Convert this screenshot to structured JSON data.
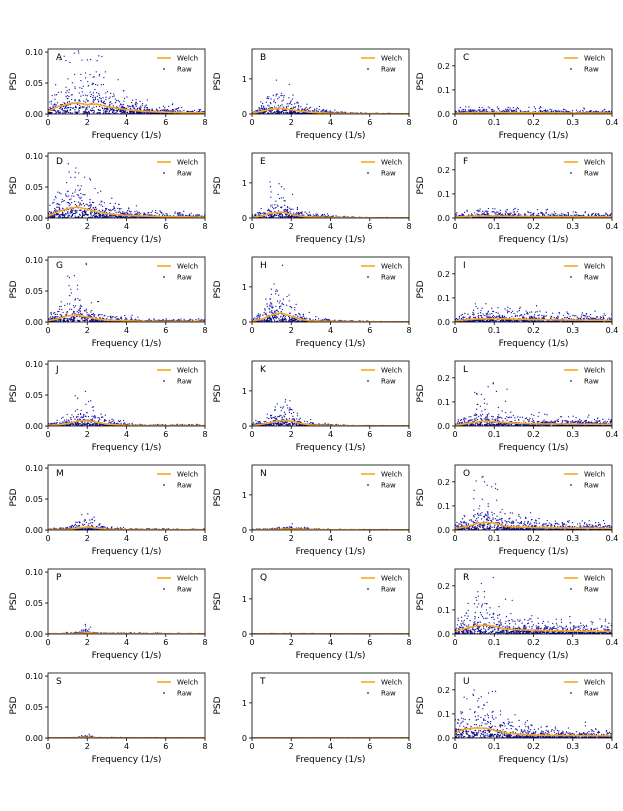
{
  "figure": {
    "legend_line_label": "Welch",
    "legend_dot_label": "Raw",
    "colors": {
      "welch": "#f5a623",
      "raw": "#1a1aa8",
      "raw_dense": "#0b0b8a"
    }
  },
  "chart_data": [
    {
      "panel": "A",
      "type": "scatter",
      "xlabel": "Frequency (1/s)",
      "ylabel": "PSD",
      "xlim": [
        0,
        8
      ],
      "ylim": [
        0,
        0.105
      ],
      "xticks": [
        0,
        2,
        4,
        6,
        8
      ],
      "yticks": [
        0,
        0.05,
        0.1
      ],
      "ytick_labels": [
        "0.00",
        "0.05",
        "0.10"
      ],
      "legend": "top-right",
      "raw_peak": 0.105,
      "welch": {
        "x": [
          0,
          0.5,
          1,
          1.5,
          2,
          2.5,
          3,
          4,
          5,
          6,
          7,
          8
        ],
        "y": [
          0.004,
          0.012,
          0.016,
          0.018,
          0.015,
          0.016,
          0.012,
          0.007,
          0.004,
          0.003,
          0.002,
          0.002
        ]
      }
    },
    {
      "panel": "B",
      "type": "scatter",
      "xlabel": "Frequency (1/s)",
      "ylabel": "PSD",
      "xlim": [
        0,
        8
      ],
      "ylim": [
        0,
        1.85
      ],
      "xticks": [
        0,
        2,
        4,
        6,
        8
      ],
      "yticks": [
        0,
        1
      ],
      "ytick_labels": [
        "0",
        "1"
      ],
      "legend": "top-right",
      "raw_peak": 1.0,
      "welch": {
        "x": [
          0,
          0.5,
          1,
          1.5,
          2,
          2.5,
          3,
          4,
          5,
          6,
          7,
          8
        ],
        "y": [
          0.02,
          0.08,
          0.14,
          0.16,
          0.12,
          0.08,
          0.05,
          0.02,
          0.01,
          0.005,
          0.003,
          0.002
        ]
      }
    },
    {
      "panel": "C",
      "type": "scatter",
      "xlabel": "Frequency (1/s)",
      "ylabel": "PSD",
      "xlim": [
        0,
        0.4
      ],
      "ylim": [
        0,
        0.27
      ],
      "xticks": [
        0,
        0.1,
        0.2,
        0.3,
        0.4
      ],
      "yticks": [
        0,
        0.1,
        0.2
      ],
      "ytick_labels": [
        "0.0",
        "0.1",
        "0.2"
      ],
      "legend": "top-right",
      "raw_peak": 0.03,
      "welch": {
        "x": [
          0,
          0.05,
          0.1,
          0.2,
          0.3,
          0.4
        ],
        "y": [
          0.003,
          0.006,
          0.006,
          0.005,
          0.004,
          0.004
        ]
      }
    },
    {
      "panel": "D",
      "type": "scatter",
      "xlabel": "Frequency (1/s)",
      "ylabel": "PSD",
      "xlim": [
        0,
        8
      ],
      "ylim": [
        0,
        0.105
      ],
      "xticks": [
        0,
        2,
        4,
        6,
        8
      ],
      "yticks": [
        0,
        0.05,
        0.1
      ],
      "ytick_labels": [
        "0.00",
        "0.05",
        "0.10"
      ],
      "legend": "top-right",
      "raw_peak": 0.093,
      "welch": {
        "x": [
          0,
          0.5,
          1,
          1.5,
          2,
          2.5,
          3,
          4,
          5,
          6,
          7,
          8
        ],
        "y": [
          0.003,
          0.01,
          0.015,
          0.018,
          0.014,
          0.01,
          0.007,
          0.004,
          0.003,
          0.002,
          0.002,
          0.001
        ]
      }
    },
    {
      "panel": "E",
      "type": "scatter",
      "xlabel": "Frequency (1/s)",
      "ylabel": "PSD",
      "xlim": [
        0,
        8
      ],
      "ylim": [
        0,
        1.85
      ],
      "xticks": [
        0,
        2,
        4,
        6,
        8
      ],
      "yticks": [
        0,
        1
      ],
      "ytick_labels": [
        "0",
        "1"
      ],
      "legend": "top-right",
      "raw_peak": 1.15,
      "welch": {
        "x": [
          0,
          0.5,
          1,
          1.5,
          2,
          2.5,
          3,
          4,
          5,
          6,
          7,
          8
        ],
        "y": [
          0.02,
          0.06,
          0.14,
          0.17,
          0.1,
          0.05,
          0.03,
          0.015,
          0.008,
          0.004,
          0.003,
          0.002
        ]
      }
    },
    {
      "panel": "F",
      "type": "scatter",
      "xlabel": "Frequency (1/s)",
      "ylabel": "PSD",
      "xlim": [
        0,
        0.4
      ],
      "ylim": [
        0,
        0.27
      ],
      "xticks": [
        0,
        0.1,
        0.2,
        0.3,
        0.4
      ],
      "yticks": [
        0,
        0.1,
        0.2
      ],
      "ytick_labels": [
        "0.0",
        "0.1",
        "0.2"
      ],
      "legend": "top-right",
      "raw_peak": 0.04,
      "welch": {
        "x": [
          0,
          0.05,
          0.1,
          0.2,
          0.3,
          0.4
        ],
        "y": [
          0.004,
          0.008,
          0.008,
          0.006,
          0.005,
          0.005
        ]
      }
    },
    {
      "panel": "G",
      "type": "scatter",
      "xlabel": "Frequency (1/s)",
      "ylabel": "PSD",
      "xlim": [
        0,
        8
      ],
      "ylim": [
        0,
        0.105
      ],
      "xticks": [
        0,
        2,
        4,
        6,
        8
      ],
      "yticks": [
        0,
        0.05,
        0.1
      ],
      "ytick_labels": [
        "0.00",
        "0.05",
        "0.10"
      ],
      "legend": "top-right",
      "raw_peak": 0.095,
      "welch": {
        "x": [
          0,
          0.5,
          1,
          1.5,
          2,
          2.5,
          3,
          4,
          5,
          6,
          7,
          8
        ],
        "y": [
          0.002,
          0.005,
          0.01,
          0.011,
          0.008,
          0.005,
          0.003,
          0.002,
          0.001,
          0.001,
          0.001,
          0.001
        ]
      }
    },
    {
      "panel": "H",
      "type": "scatter",
      "xlabel": "Frequency (1/s)",
      "ylabel": "PSD",
      "xlim": [
        0,
        8
      ],
      "ylim": [
        0,
        1.85
      ],
      "xticks": [
        0,
        2,
        4,
        6,
        8
      ],
      "yticks": [
        0,
        1
      ],
      "ytick_labels": [
        "0",
        "1"
      ],
      "legend": "top-right",
      "raw_peak": 1.65,
      "welch": {
        "x": [
          0,
          0.5,
          1,
          1.5,
          2,
          2.5,
          3,
          4,
          5,
          6,
          7,
          8
        ],
        "y": [
          0.02,
          0.08,
          0.2,
          0.26,
          0.16,
          0.07,
          0.03,
          0.015,
          0.008,
          0.005,
          0.003,
          0.002
        ]
      }
    },
    {
      "panel": "I",
      "type": "scatter",
      "xlabel": "Frequency (1/s)",
      "ylabel": "PSD",
      "xlim": [
        0,
        0.4
      ],
      "ylim": [
        0,
        0.27
      ],
      "xticks": [
        0,
        0.1,
        0.2,
        0.3,
        0.4
      ],
      "yticks": [
        0,
        0.1,
        0.2
      ],
      "ytick_labels": [
        "0.0",
        "0.1",
        "0.2"
      ],
      "legend": "top-right",
      "raw_peak": 0.08,
      "welch": {
        "x": [
          0,
          0.05,
          0.1,
          0.15,
          0.2,
          0.3,
          0.4
        ],
        "y": [
          0.005,
          0.012,
          0.014,
          0.012,
          0.01,
          0.008,
          0.007
        ]
      }
    },
    {
      "panel": "J",
      "type": "scatter",
      "xlabel": "Frequency (1/s)",
      "ylabel": "PSD",
      "xlim": [
        0,
        8
      ],
      "ylim": [
        0,
        0.105
      ],
      "xticks": [
        0,
        2,
        4,
        6,
        8
      ],
      "yticks": [
        0,
        0.05,
        0.1
      ],
      "ytick_labels": [
        "0.00",
        "0.05",
        "0.10"
      ],
      "legend": "top-right",
      "raw_peak": 0.058,
      "welch": {
        "x": [
          0,
          0.5,
          1,
          1.5,
          2,
          2.5,
          3,
          4,
          5,
          6,
          7,
          8
        ],
        "y": [
          0.001,
          0.002,
          0.004,
          0.008,
          0.009,
          0.006,
          0.003,
          0.001,
          0.0005,
          0.0005,
          0.0005,
          0.0005
        ]
      }
    },
    {
      "panel": "K",
      "type": "scatter",
      "xlabel": "Frequency (1/s)",
      "ylabel": "PSD",
      "xlim": [
        0,
        8
      ],
      "ylim": [
        0,
        1.85
      ],
      "xticks": [
        0,
        2,
        4,
        6,
        8
      ],
      "yticks": [
        0,
        1
      ],
      "ytick_labels": [
        "0",
        "1"
      ],
      "legend": "top-right",
      "raw_peak": 0.75,
      "welch": {
        "x": [
          0,
          0.5,
          1,
          1.5,
          2,
          2.5,
          3,
          4,
          5,
          6,
          7,
          8
        ],
        "y": [
          0.01,
          0.05,
          0.1,
          0.16,
          0.14,
          0.07,
          0.03,
          0.01,
          0.005,
          0.003,
          0.002,
          0.002
        ]
      }
    },
    {
      "panel": "L",
      "type": "scatter",
      "xlabel": "Frequency (1/s)",
      "ylabel": "PSD",
      "xlim": [
        0,
        0.4
      ],
      "ylim": [
        0,
        0.27
      ],
      "xticks": [
        0,
        0.1,
        0.2,
        0.3,
        0.4
      ],
      "yticks": [
        0,
        0.1,
        0.2
      ],
      "ytick_labels": [
        "0.0",
        "0.1",
        "0.2"
      ],
      "legend": "top-right",
      "raw_peak": 0.18,
      "welch": {
        "x": [
          0,
          0.03,
          0.06,
          0.08,
          0.1,
          0.15,
          0.2,
          0.3,
          0.4
        ],
        "y": [
          0.003,
          0.01,
          0.018,
          0.02,
          0.018,
          0.012,
          0.009,
          0.008,
          0.007
        ]
      }
    },
    {
      "panel": "M",
      "type": "scatter",
      "xlabel": "Frequency (1/s)",
      "ylabel": "PSD",
      "xlim": [
        0,
        8
      ],
      "ylim": [
        0,
        0.105
      ],
      "xticks": [
        0,
        2,
        4,
        6,
        8
      ],
      "yticks": [
        0,
        0.05,
        0.1
      ],
      "ytick_labels": [
        "0.00",
        "0.05",
        "0.10"
      ],
      "legend": "top-right",
      "raw_peak": 0.035,
      "welch": {
        "x": [
          0,
          1,
          1.5,
          2,
          2.5,
          3,
          4,
          8
        ],
        "y": [
          0.0005,
          0.001,
          0.003,
          0.005,
          0.003,
          0.001,
          0.0005,
          0.0003
        ]
      }
    },
    {
      "panel": "N",
      "type": "scatter",
      "xlabel": "Frequency (1/s)",
      "ylabel": "PSD",
      "xlim": [
        0,
        8
      ],
      "ylim": [
        0,
        1.85
      ],
      "xticks": [
        0,
        2,
        4,
        6,
        8
      ],
      "yticks": [
        0,
        1
      ],
      "ytick_labels": [
        "0",
        "1"
      ],
      "legend": "top-right",
      "raw_peak": 0.2,
      "welch": {
        "x": [
          0,
          1,
          1.5,
          2,
          2.5,
          3,
          4,
          8
        ],
        "y": [
          0.005,
          0.01,
          0.02,
          0.03,
          0.02,
          0.01,
          0.005,
          0.002
        ]
      }
    },
    {
      "panel": "O",
      "type": "scatter",
      "xlabel": "Frequency (1/s)",
      "ylabel": "PSD",
      "xlim": [
        0,
        0.4
      ],
      "ylim": [
        0,
        0.27
      ],
      "xticks": [
        0,
        0.1,
        0.2,
        0.3,
        0.4
      ],
      "yticks": [
        0,
        0.1,
        0.2
      ],
      "ytick_labels": [
        "0.0",
        "0.1",
        "0.2"
      ],
      "legend": "top-right",
      "raw_peak": 0.26,
      "welch": {
        "x": [
          0,
          0.03,
          0.06,
          0.08,
          0.1,
          0.13,
          0.2,
          0.3,
          0.4
        ],
        "y": [
          0.005,
          0.015,
          0.028,
          0.032,
          0.028,
          0.015,
          0.01,
          0.008,
          0.007
        ]
      }
    },
    {
      "panel": "P",
      "type": "scatter",
      "xlabel": "Frequency (1/s)",
      "ylabel": "PSD",
      "xlim": [
        0,
        8
      ],
      "ylim": [
        0,
        0.105
      ],
      "xticks": [
        0,
        2,
        4,
        6,
        8
      ],
      "yticks": [
        0,
        0.05,
        0.1
      ],
      "ytick_labels": [
        "0.00",
        "0.05",
        "0.10"
      ],
      "legend": "top-right",
      "raw_peak": 0.016,
      "welch": {
        "x": [
          0,
          1.5,
          1.9,
          2.1,
          2.5,
          8
        ],
        "y": [
          0.0002,
          0.0005,
          0.002,
          0.002,
          0.0005,
          0.0002
        ]
      }
    },
    {
      "panel": "Q",
      "type": "scatter",
      "xlabel": "Frequency (1/s)",
      "ylabel": "PSD",
      "xlim": [
        0,
        8
      ],
      "ylim": [
        0,
        1.85
      ],
      "xticks": [
        0,
        2,
        4,
        6,
        8
      ],
      "yticks": [
        0,
        1
      ],
      "ytick_labels": [
        "0",
        "1"
      ],
      "legend": "top-right",
      "raw_peak": 0.02,
      "welch": {
        "x": [
          0,
          2,
          4,
          8
        ],
        "y": [
          0.001,
          0.002,
          0.001,
          0.001
        ]
      }
    },
    {
      "panel": "R",
      "type": "scatter",
      "xlabel": "Frequency (1/s)",
      "ylabel": "PSD",
      "xlim": [
        0,
        0.4
      ],
      "ylim": [
        0,
        0.27
      ],
      "xticks": [
        0,
        0.1,
        0.2,
        0.3,
        0.4
      ],
      "yticks": [
        0,
        0.1,
        0.2
      ],
      "ytick_labels": [
        "0.0",
        "0.1",
        "0.2"
      ],
      "legend": "top-right",
      "raw_peak": 0.24,
      "welch": {
        "x": [
          0,
          0.03,
          0.06,
          0.08,
          0.1,
          0.13,
          0.2,
          0.3,
          0.4
        ],
        "y": [
          0.01,
          0.025,
          0.035,
          0.037,
          0.032,
          0.02,
          0.015,
          0.012,
          0.011
        ]
      }
    },
    {
      "panel": "S",
      "type": "scatter",
      "xlabel": "Frequency (1/s)",
      "ylabel": "PSD",
      "xlim": [
        0,
        8
      ],
      "ylim": [
        0,
        0.105
      ],
      "xticks": [
        0,
        2,
        4,
        6,
        8
      ],
      "yticks": [
        0,
        0.05,
        0.1
      ],
      "ytick_labels": [
        "0.00",
        "0.05",
        "0.10"
      ],
      "legend": "top-right",
      "raw_peak": 0.007,
      "welch": {
        "x": [
          0,
          1.5,
          1.9,
          2.1,
          2.5,
          8
        ],
        "y": [
          0.0001,
          0.0002,
          0.001,
          0.001,
          0.0002,
          0.0001
        ]
      }
    },
    {
      "panel": "T",
      "type": "scatter",
      "xlabel": "Frequency (1/s)",
      "ylabel": "PSD",
      "xlim": [
        0,
        8
      ],
      "ylim": [
        0,
        1.85
      ],
      "xticks": [
        0,
        2,
        4,
        6,
        8
      ],
      "yticks": [
        0,
        1
      ],
      "ytick_labels": [
        "0",
        "1"
      ],
      "legend": "top-right",
      "raw_peak": 0.01,
      "welch": {
        "x": [
          0,
          2,
          4,
          8
        ],
        "y": [
          0.0005,
          0.001,
          0.0005,
          0.0005
        ]
      }
    },
    {
      "panel": "U",
      "type": "scatter",
      "xlabel": "Frequency (1/s)",
      "ylabel": "PSD",
      "xlim": [
        0,
        0.4
      ],
      "ylim": [
        0,
        0.27
      ],
      "xticks": [
        0,
        0.1,
        0.2,
        0.3,
        0.4
      ],
      "yticks": [
        0,
        0.1,
        0.2
      ],
      "ytick_labels": [
        "0.0",
        "0.1",
        "0.2"
      ],
      "legend": "top-right",
      "raw_peak": 0.2,
      "welch": {
        "x": [
          0,
          0.02,
          0.05,
          0.08,
          0.1,
          0.13,
          0.2,
          0.3,
          0.4
        ],
        "y": [
          0.02,
          0.035,
          0.042,
          0.04,
          0.032,
          0.02,
          0.012,
          0.01,
          0.009
        ]
      }
    }
  ]
}
